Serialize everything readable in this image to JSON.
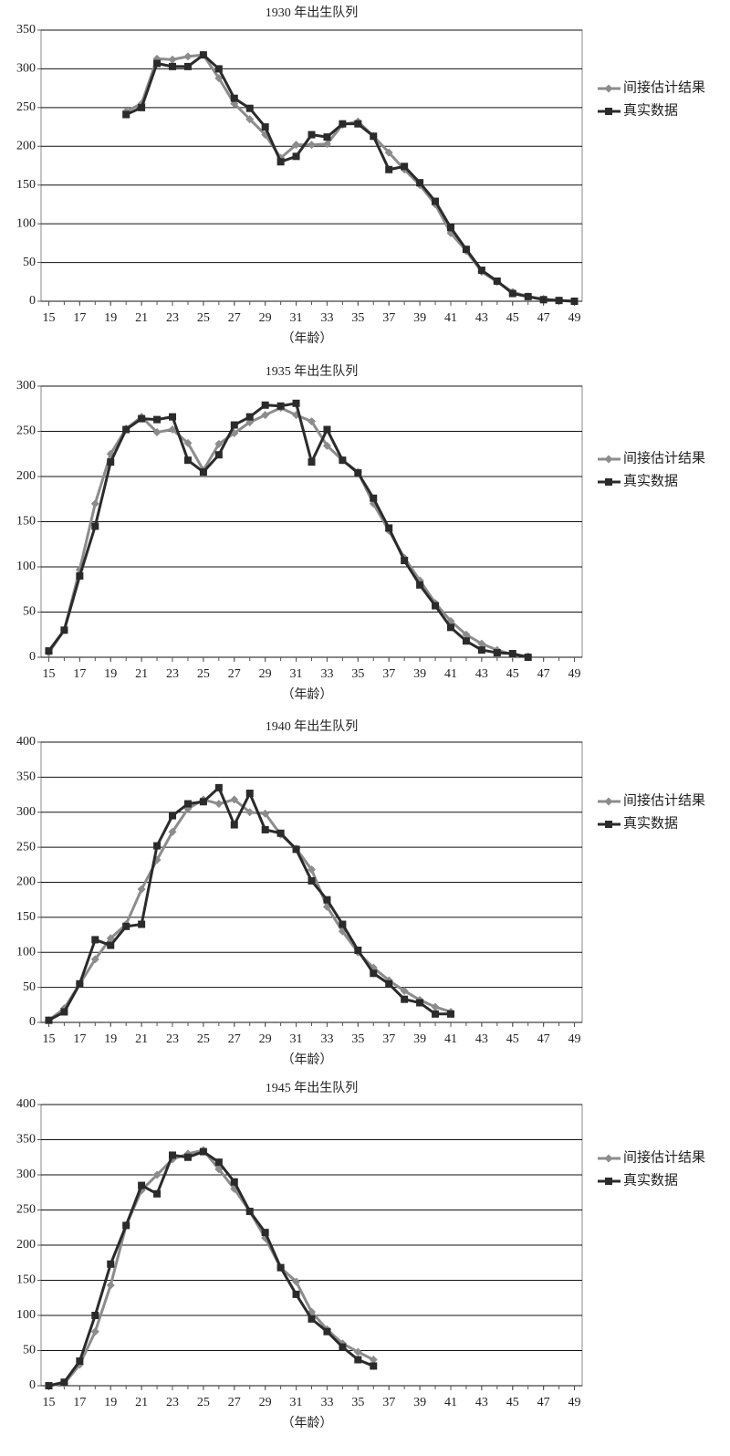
{
  "chart_data": [
    {
      "type": "line",
      "title": "1930 年出生队列",
      "x_label": "（年龄）",
      "grid": true,
      "xlim": [
        14.5,
        49.5
      ],
      "xticks": [
        15,
        17,
        19,
        21,
        23,
        25,
        27,
        29,
        31,
        33,
        35,
        37,
        39,
        41,
        43,
        45,
        47,
        49
      ],
      "ylim": [
        0,
        350
      ],
      "yticks": [
        0,
        50,
        100,
        150,
        200,
        250,
        300,
        350
      ],
      "x": [
        20,
        21,
        22,
        23,
        24,
        25,
        26,
        27,
        28,
        29,
        30,
        31,
        32,
        33,
        34,
        35,
        36,
        37,
        38,
        39,
        40,
        41,
        42,
        43,
        44,
        45,
        46,
        47,
        48,
        49
      ],
      "series": [
        {
          "name": "间接估计结果",
          "color": "#8c8c8c",
          "marker": "diamond",
          "values": [
            245,
            255,
            313,
            312,
            316,
            318,
            288,
            255,
            235,
            215,
            185,
            202,
            202,
            203,
            228,
            232,
            213,
            192,
            170,
            150,
            125,
            88,
            65,
            38,
            25,
            12,
            6,
            3,
            1,
            0
          ]
        },
        {
          "name": "真实数据",
          "color": "#2b2b2b",
          "marker": "square",
          "values": [
            241,
            250,
            307,
            303,
            303,
            318,
            300,
            262,
            249,
            225,
            180,
            187,
            215,
            212,
            229,
            229,
            213,
            170,
            174,
            153,
            129,
            95,
            67,
            40,
            26,
            10,
            6,
            2,
            1,
            0
          ]
        }
      ]
    },
    {
      "type": "line",
      "title": "1935 年出生队列",
      "x_label": "（年龄）",
      "grid": true,
      "xlim": [
        14.5,
        49.5
      ],
      "xticks": [
        15,
        17,
        19,
        21,
        23,
        25,
        27,
        29,
        31,
        33,
        35,
        37,
        39,
        41,
        43,
        45,
        47,
        49
      ],
      "ylim": [
        0,
        300
      ],
      "yticks": [
        0,
        50,
        100,
        150,
        200,
        250,
        300
      ],
      "x": [
        15,
        16,
        17,
        18,
        19,
        20,
        21,
        22,
        23,
        24,
        25,
        26,
        27,
        28,
        29,
        30,
        31,
        32,
        33,
        34,
        35,
        36,
        37,
        38,
        39,
        40,
        41,
        42,
        43,
        44,
        45,
        46
      ],
      "series": [
        {
          "name": "间接估计结果",
          "color": "#8c8c8c",
          "marker": "diamond",
          "values": [
            5,
            30,
            97,
            170,
            225,
            253,
            266,
            249,
            252,
            237,
            207,
            236,
            248,
            260,
            268,
            276,
            268,
            261,
            234,
            218,
            205,
            170,
            140,
            110,
            85,
            60,
            40,
            25,
            15,
            8,
            3,
            1
          ]
        },
        {
          "name": "真实数据",
          "color": "#2b2b2b",
          "marker": "square",
          "values": [
            7,
            30,
            90,
            145,
            216,
            252,
            264,
            263,
            266,
            218,
            205,
            224,
            257,
            266,
            279,
            278,
            281,
            216,
            252,
            218,
            204,
            176,
            143,
            107,
            80,
            57,
            33,
            18,
            8,
            5,
            4,
            0
          ]
        }
      ]
    },
    {
      "type": "line",
      "title": "1940 年出生队列",
      "x_label": "（年龄）",
      "grid": true,
      "xlim": [
        14.5,
        49.5
      ],
      "xticks": [
        15,
        17,
        19,
        21,
        23,
        25,
        27,
        29,
        31,
        33,
        35,
        37,
        39,
        41,
        43,
        45,
        47,
        49
      ],
      "ylim": [
        0,
        400
      ],
      "yticks": [
        0,
        50,
        100,
        150,
        200,
        250,
        300,
        350,
        400
      ],
      "x": [
        15,
        16,
        17,
        18,
        19,
        20,
        21,
        22,
        23,
        24,
        25,
        26,
        27,
        28,
        29,
        30,
        31,
        32,
        33,
        34,
        35,
        36,
        37,
        38,
        39,
        40,
        41
      ],
      "series": [
        {
          "name": "间接估计结果",
          "color": "#8c8c8c",
          "marker": "diamond",
          "values": [
            3,
            20,
            55,
            90,
            120,
            140,
            190,
            232,
            272,
            305,
            318,
            312,
            318,
            300,
            298,
            268,
            248,
            218,
            165,
            130,
            100,
            78,
            60,
            45,
            32,
            22,
            15
          ]
        },
        {
          "name": "真实数据",
          "color": "#2b2b2b",
          "marker": "square",
          "values": [
            3,
            15,
            55,
            118,
            110,
            137,
            140,
            252,
            295,
            312,
            315,
            335,
            282,
            327,
            275,
            270,
            247,
            202,
            175,
            140,
            103,
            70,
            55,
            33,
            28,
            12,
            12
          ]
        }
      ]
    },
    {
      "type": "line",
      "title": "1945 年出生队列",
      "x_label": "（年龄）",
      "grid": true,
      "xlim": [
        14.5,
        49.5
      ],
      "xticks": [
        15,
        17,
        19,
        21,
        23,
        25,
        27,
        29,
        31,
        33,
        35,
        37,
        39,
        41,
        43,
        45,
        47,
        49
      ],
      "ylim": [
        0,
        400
      ],
      "yticks": [
        0,
        50,
        100,
        150,
        200,
        250,
        300,
        350,
        400
      ],
      "x": [
        15,
        16,
        17,
        18,
        19,
        20,
        21,
        22,
        23,
        24,
        25,
        26,
        27,
        28,
        29,
        30,
        31,
        32,
        33,
        34,
        35,
        36
      ],
      "series": [
        {
          "name": "间接估计结果",
          "color": "#8c8c8c",
          "marker": "diamond",
          "values": [
            0,
            3,
            30,
            77,
            143,
            228,
            278,
            300,
            322,
            330,
            335,
            308,
            280,
            248,
            210,
            168,
            148,
            105,
            80,
            60,
            48,
            37
          ]
        },
        {
          "name": "真实数据",
          "color": "#2b2b2b",
          "marker": "square",
          "values": [
            0,
            5,
            35,
            100,
            173,
            228,
            285,
            273,
            328,
            325,
            333,
            318,
            290,
            248,
            218,
            168,
            130,
            95,
            77,
            55,
            37,
            28
          ]
        }
      ]
    }
  ]
}
